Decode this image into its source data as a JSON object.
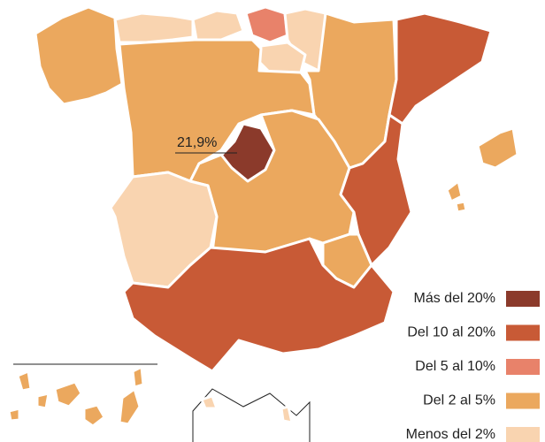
{
  "annotation": "21,9%",
  "legend": [
    {
      "label": "Más del 20%",
      "color": "#8b3a2b"
    },
    {
      "label": "Del 10 al 20%",
      "color": "#c85a36"
    },
    {
      "label": "Del 5 al 10%",
      "color": "#e8826a"
    },
    {
      "label": "Del 2 al 5%",
      "color": "#eba85e"
    },
    {
      "label": "Menos del 2%",
      "color": "#f9d4b0"
    }
  ]
}
